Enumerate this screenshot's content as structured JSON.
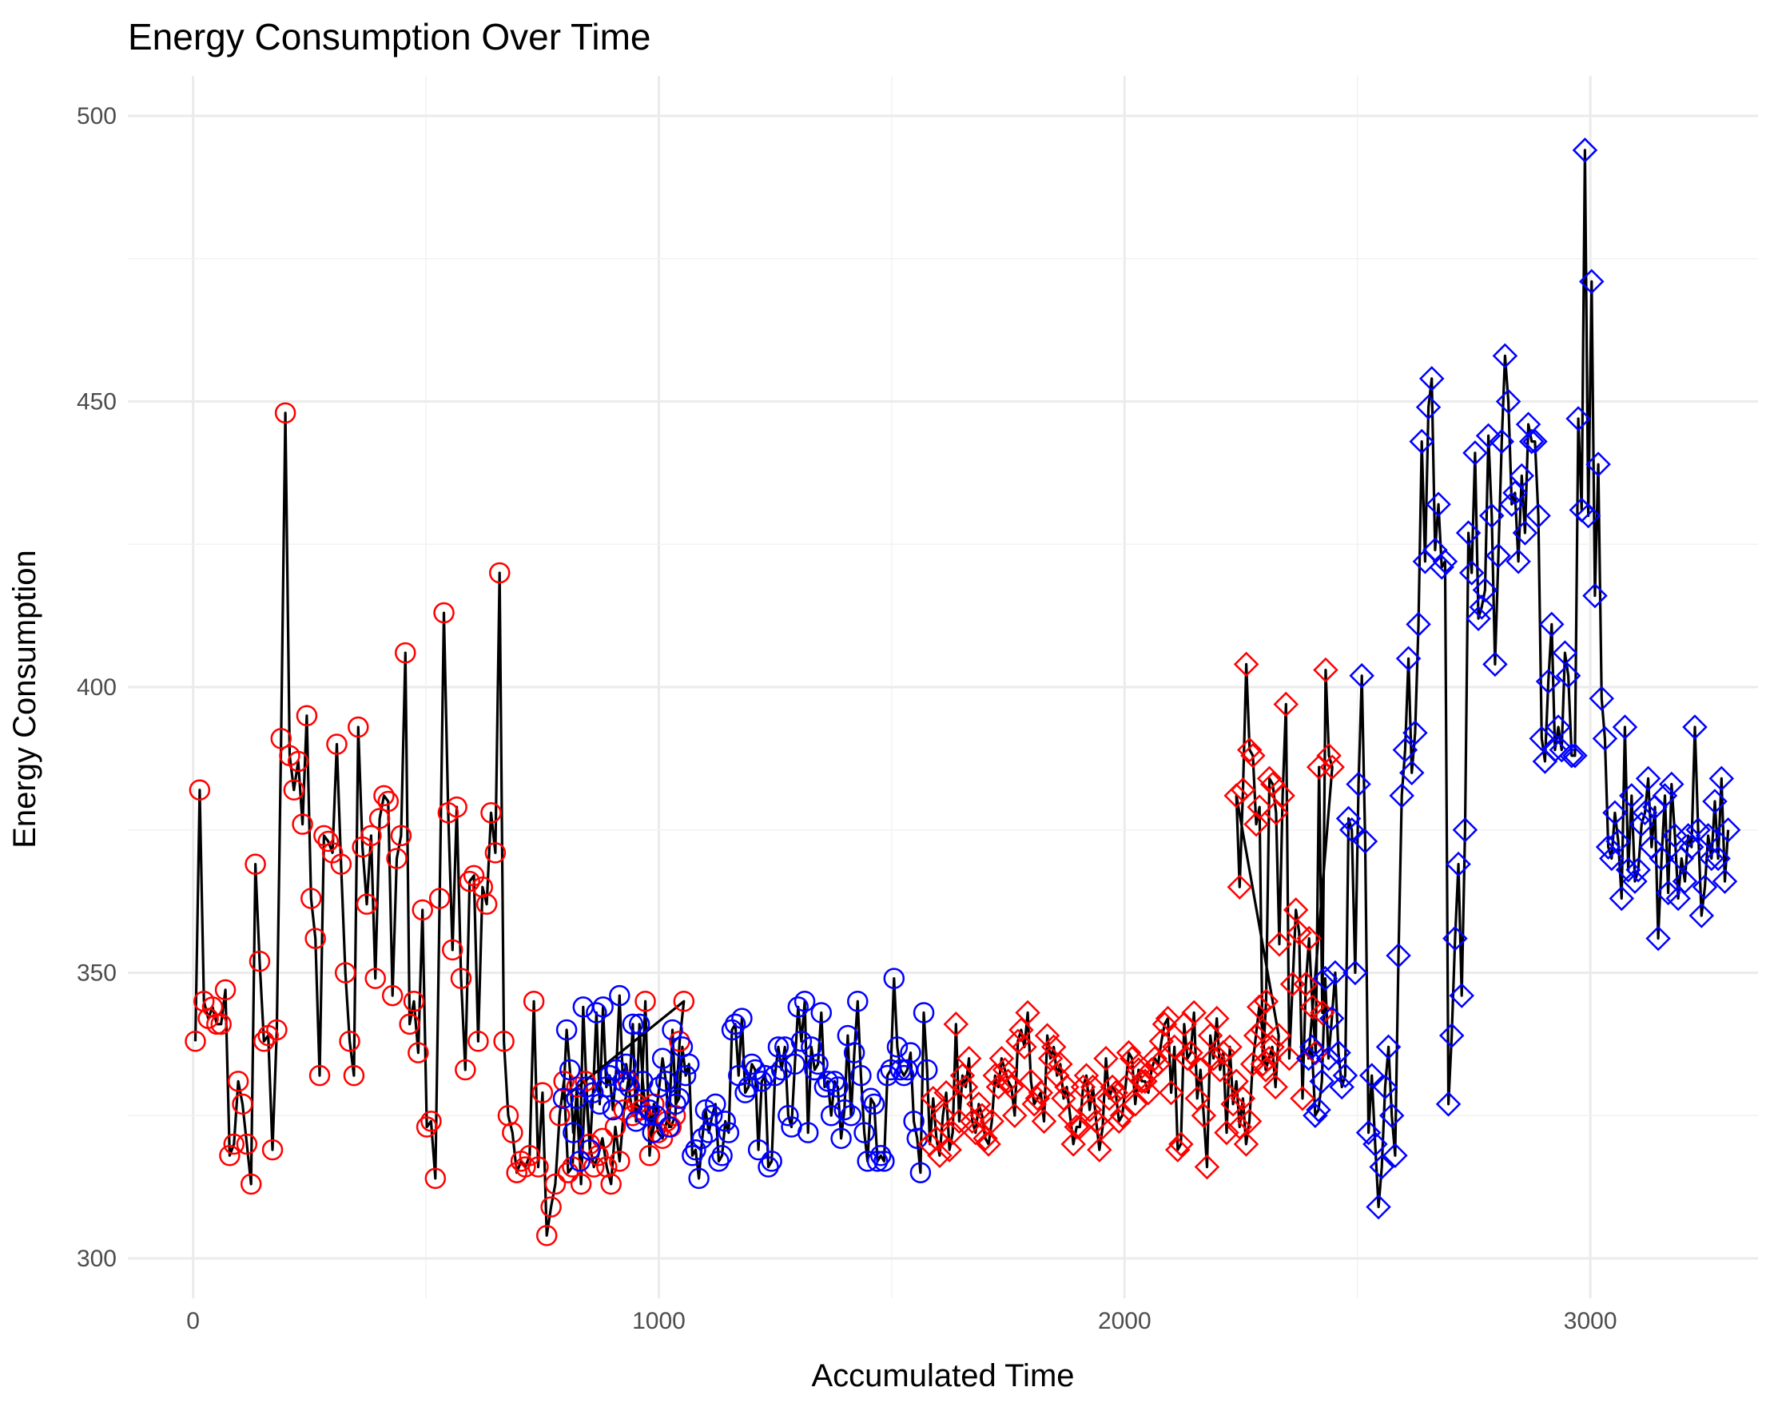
{
  "chart_data": {
    "type": "line",
    "title": "Energy Consumption Over Time",
    "xlabel": "Accumulated Time",
    "ylabel": "Energy Consumption",
    "xlim": [
      -140,
      3360
    ],
    "ylim": [
      293,
      507
    ],
    "x_ticks": [
      0,
      1000,
      2000,
      3000
    ],
    "y_ticks": [
      300,
      350,
      400,
      450,
      500
    ],
    "grid": true,
    "legend": "none",
    "line_color": "#000000",
    "segments": [
      {
        "color": "#ff0000",
        "shape": "circle",
        "x_start": 5,
        "x_step": 9.2,
        "values": [
          338,
          382,
          345,
          342,
          344,
          341,
          341,
          347,
          318,
          320,
          331,
          327,
          320,
          313,
          369,
          352,
          338,
          339,
          319,
          340,
          391,
          448,
          388,
          382,
          387,
          376,
          395,
          363,
          356,
          332,
          374,
          373,
          371,
          390,
          369,
          350,
          338,
          332,
          393,
          372,
          362,
          374,
          349,
          377,
          381,
          380,
          346,
          370,
          374,
          406,
          341,
          345,
          336,
          361,
          323,
          324,
          314,
          363,
          413,
          378,
          354,
          379,
          349,
          333,
          366,
          367,
          338,
          365,
          362,
          378,
          371,
          420,
          338,
          325,
          322,
          315,
          317,
          316,
          318,
          345,
          316,
          329,
          304,
          309,
          313,
          325,
          331,
          315,
          316,
          330,
          313,
          331,
          320,
          316,
          318,
          321,
          316,
          313,
          323,
          317,
          326,
          331,
          325,
          327,
          326,
          345,
          318,
          327,
          322,
          321,
          324,
          323,
          325,
          338,
          345
        ]
      },
      {
        "color": "#0000ff",
        "shape": "circle",
        "x_start": 795,
        "x_step": 7.1,
        "values": [
          328,
          340,
          333,
          322,
          328,
          317,
          344,
          330,
          319,
          329,
          343,
          327,
          344,
          330,
          332,
          326,
          333,
          346,
          331,
          334,
          330,
          341,
          324,
          341,
          331,
          325,
          326,
          322,
          325,
          330,
          335,
          331,
          323,
          340,
          327,
          328,
          337,
          332,
          334,
          318,
          319,
          314,
          321,
          326,
          322,
          325,
          327,
          317,
          318,
          324,
          322,
          340,
          341,
          332,
          342,
          329,
          330,
          334,
          333,
          319,
          331,
          332,
          316,
          317,
          332,
          337,
          333,
          337,
          325,
          323,
          334,
          344,
          338,
          345,
          322,
          337,
          333,
          334,
          343,
          330,
          331,
          325,
          331,
          330,
          321,
          326,
          339,
          325,
          336,
          345,
          332,
          322,
          317,
          328,
          327,
          317,
          318,
          317,
          332,
          333,
          349,
          337,
          333,
          332,
          333,
          336,
          324,
          321,
          315,
          343,
          333
        ]
      },
      {
        "color": "#ff0000",
        "shape": "diamond",
        "x_start": 1582,
        "x_step": 7.0,
        "values": [
          320,
          328,
          321,
          318,
          325,
          329,
          319,
          322,
          341,
          324,
          332,
          330,
          335,
          324,
          322,
          327,
          325,
          321,
          320,
          324,
          332,
          330,
          335,
          333,
          331,
          330,
          325,
          338,
          340,
          337,
          343,
          331,
          327,
          328,
          329,
          324,
          339,
          335,
          337,
          332,
          334,
          328,
          330,
          325,
          320,
          323,
          323,
          330,
          332,
          326,
          330,
          324,
          319,
          323,
          335,
          328,
          330,
          329,
          324,
          325,
          330,
          336,
          335,
          327,
          333,
          331,
          331,
          329,
          333,
          335,
          334,
          338,
          341,
          342,
          329,
          337,
          319,
          320,
          341,
          335,
          336,
          343,
          328,
          333,
          325,
          316,
          339,
          335,
          342,
          333,
          336,
          322,
          337,
          327,
          331,
          323,
          328,
          320,
          324,
          334,
          339,
          344,
          340,
          333,
          335,
          337,
          330,
          339
        ]
      },
      {
        "color": "#ff0000",
        "shape": "diamond",
        "x_start": 2240,
        "x_step": 7.1,
        "values": [
          381,
          365,
          382,
          404,
          389,
          388,
          376,
          379,
          334,
          345,
          384,
          383,
          378,
          355,
          381,
          397,
          335,
          348,
          361,
          357,
          328,
          348,
          356,
          344,
          336,
          386,
          343,
          403,
          388,
          386
        ]
      },
      {
        "color": "#0000ff",
        "shape": "diamond",
        "x_start": 2395,
        "x_step": 7.15,
        "values": [
          335,
          337,
          325,
          326,
          331,
          349,
          335,
          342,
          350,
          336,
          330,
          332,
          377,
          375,
          350,
          383,
          402,
          373,
          322,
          332,
          320,
          309,
          316,
          330,
          337,
          325,
          318,
          353,
          381,
          389,
          405,
          385,
          392,
          411,
          443,
          422,
          449,
          454,
          424,
          432,
          421,
          422,
          327,
          339,
          356,
          369,
          346,
          375,
          427,
          420,
          441,
          412,
          414,
          417,
          444,
          430,
          404,
          423,
          443,
          458,
          450,
          432,
          434,
          422,
          437,
          427,
          446,
          443,
          443,
          430,
          391,
          387,
          401,
          411,
          389,
          393,
          389,
          406,
          402,
          388,
          388,
          447,
          431,
          494,
          430,
          471,
          416,
          439,
          398,
          391,
          372,
          370,
          378,
          373,
          363,
          393,
          368,
          381,
          366,
          368,
          376,
          378,
          384,
          372,
          379,
          356,
          370,
          381,
          364,
          383,
          374,
          363,
          370,
          366,
          374,
          372,
          393,
          375,
          360,
          365,
          374,
          370,
          380,
          370,
          384,
          366,
          375
        ]
      }
    ]
  }
}
